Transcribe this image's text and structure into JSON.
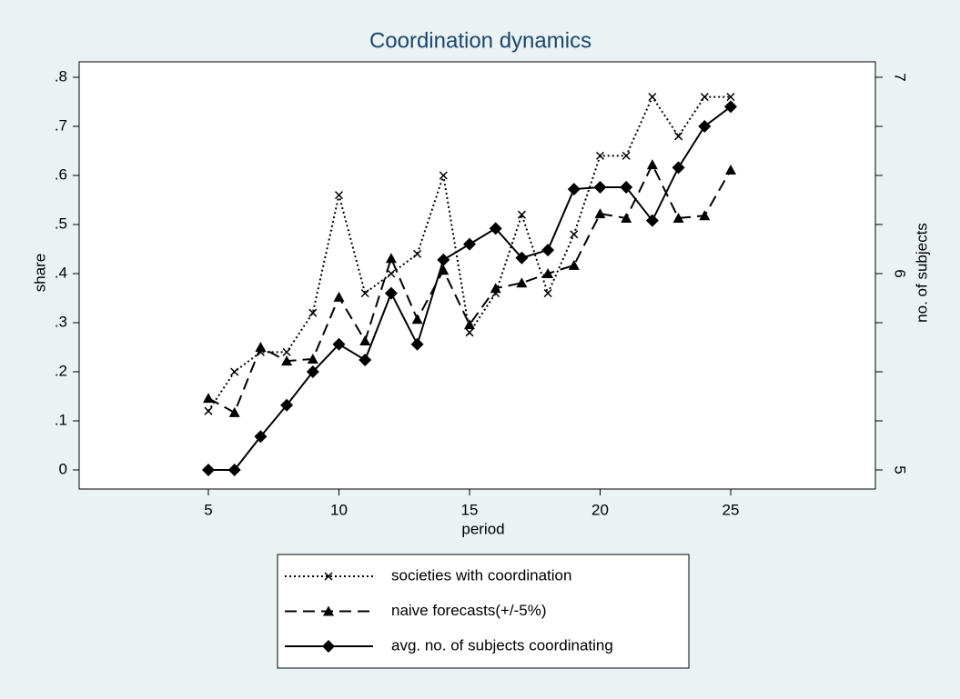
{
  "chart_data": {
    "type": "line",
    "title": "Coordination dynamics",
    "xlabel": "period",
    "ylabel": "share",
    "y2label": "no. of subjects",
    "x": [
      5,
      6,
      7,
      8,
      9,
      10,
      11,
      12,
      13,
      14,
      15,
      16,
      17,
      18,
      19,
      20,
      21,
      22,
      23,
      24,
      25
    ],
    "xlim": [
      0,
      30
    ],
    "xticks": [
      5,
      10,
      15,
      20,
      25
    ],
    "ylim": [
      0,
      0.8
    ],
    "yticks": [
      0,
      {
        "value": 0.1,
        "label": ".1"
      },
      {
        "value": 0.2,
        "label": ".2"
      },
      {
        "value": 0.3,
        "label": ".3"
      },
      {
        "value": 0.4,
        "label": ".4"
      },
      {
        "value": 0.5,
        "label": ".5"
      },
      {
        "value": 0.6,
        "label": ".6"
      },
      {
        "value": 0.7,
        "label": ".7"
      },
      {
        "value": 0.8,
        "label": ".8"
      }
    ],
    "y2lim": [
      5,
      7
    ],
    "y2ticks": [
      5,
      6,
      7
    ],
    "y2minor_ticks": [
      5.25,
      5.5,
      5.75,
      6.25,
      6.5,
      6.75
    ],
    "series": [
      {
        "name": "societies with coordination",
        "color": "#000000",
        "dash": "dotted",
        "marker": "x",
        "values": [
          0.12,
          0.2,
          0.24,
          0.24,
          0.32,
          0.56,
          0.36,
          0.4,
          0.44,
          0.6,
          0.28,
          0.36,
          0.52,
          0.36,
          0.48,
          0.64,
          0.64,
          0.76,
          0.68,
          0.76,
          0.76
        ]
      },
      {
        "name": "naive forecasts(+/-5%)",
        "color": "#000000",
        "dash": "dashed",
        "marker": "triangle",
        "values": [
          0.146,
          0.117,
          0.25,
          0.222,
          0.226,
          0.352,
          0.263,
          0.431,
          0.307,
          0.407,
          0.296,
          0.37,
          0.381,
          0.4,
          0.417,
          0.522,
          0.513,
          0.622,
          0.513,
          0.518,
          0.611
        ]
      },
      {
        "name": "avg. no. of subjects coordinating",
        "color": "#000000",
        "dash": "solid",
        "marker": "diamond",
        "axis": "y2",
        "values": [
          5,
          5,
          5.17,
          5.33,
          5.5,
          5.64,
          5.56,
          5.9,
          5.64,
          6.07,
          6.15,
          6.23,
          6.08,
          6.12,
          6.43,
          6.44,
          6.44,
          6.27,
          6.54,
          6.75,
          6.85
        ]
      }
    ]
  }
}
